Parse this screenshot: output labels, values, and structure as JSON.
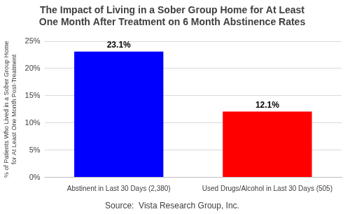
{
  "chart_data": {
    "type": "bar",
    "title": [
      "The Impact of Living in a Sober Group Home for At Least",
      "One Month After Treatment on 6 Month Abstinence Rates"
    ],
    "y_label": [
      "% of Patients Who Lived in a Sober Group Home",
      "for At Least One Month Post-Treatment"
    ],
    "annotation": "Source:  Vista Research Group, Inc.",
    "categories": [
      "Abstinent in Last 30 Days (2,380)",
      "Used Drugs/Alcohol in Last 30 Days (505)"
    ],
    "values": [
      23.1,
      12.1
    ],
    "value_labels": [
      "23.1%",
      "12.1%"
    ],
    "colors": [
      "#0000ff",
      "#ff0000"
    ],
    "ylim": [
      0,
      25
    ],
    "yticks": [
      {
        "value": 0,
        "label": "0%"
      },
      {
        "value": 5,
        "label": "5%"
      },
      {
        "value": 10,
        "label": "10%"
      },
      {
        "value": 15,
        "label": "15%"
      },
      {
        "value": 20,
        "label": "20%"
      },
      {
        "value": 25,
        "label": "25%"
      }
    ],
    "grid": true,
    "data_labels": true
  }
}
